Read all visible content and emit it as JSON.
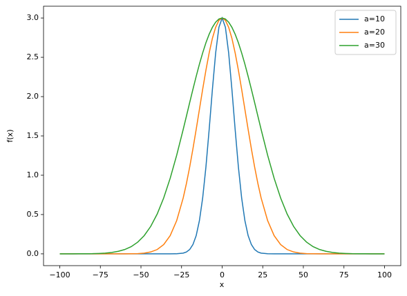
{
  "chart_data": {
    "type": "line",
    "x_label": "x",
    "y_label": "f(x)",
    "x": [
      -100,
      -96,
      -92,
      -88,
      -84,
      -80,
      -76,
      -72,
      -68,
      -64,
      -60,
      -56,
      -52,
      -48,
      -44,
      -40,
      -36,
      -32,
      -28,
      -24,
      -22,
      -20,
      -18,
      -16,
      -14,
      -12,
      -10,
      -8,
      -6,
      -4,
      -2,
      0,
      2,
      4,
      6,
      8,
      10,
      12,
      14,
      16,
      18,
      20,
      22,
      24,
      28,
      32,
      36,
      40,
      44,
      48,
      52,
      56,
      60,
      64,
      68,
      72,
      76,
      80,
      84,
      88,
      92,
      96,
      100
    ],
    "series": [
      {
        "name": "a=10",
        "color": "#1f77b4",
        "values": [
          0,
          0,
          0,
          0,
          0,
          0,
          0,
          0,
          0,
          0,
          0,
          0,
          0,
          0,
          0,
          0,
          0,
          0,
          0.001,
          0.009,
          0.024,
          0.055,
          0.118,
          0.232,
          0.423,
          0.711,
          1.104,
          1.582,
          2.093,
          2.556,
          2.882,
          3,
          2.882,
          2.556,
          2.093,
          1.582,
          1.104,
          0.711,
          0.423,
          0.232,
          0.118,
          0.055,
          0.024,
          0.009,
          0.001,
          0,
          0,
          0,
          0,
          0,
          0,
          0,
          0,
          0,
          0,
          0,
          0,
          0,
          0,
          0,
          0,
          0,
          0
        ]
      },
      {
        "name": "a=20",
        "color": "#ff7f0e",
        "values": [
          0,
          0,
          0,
          0,
          0,
          0,
          0,
          0,
          0,
          0,
          0,
          0.001,
          0.003,
          0.009,
          0.024,
          0.055,
          0.118,
          0.232,
          0.423,
          0.711,
          0.895,
          1.104,
          1.335,
          1.582,
          1.838,
          2.093,
          2.336,
          2.556,
          2.742,
          2.882,
          2.97,
          3,
          2.97,
          2.882,
          2.742,
          2.556,
          2.336,
          2.093,
          1.838,
          1.582,
          1.335,
          1.104,
          0.895,
          0.711,
          0.423,
          0.232,
          0.118,
          0.055,
          0.024,
          0.009,
          0.003,
          0.001,
          0,
          0,
          0,
          0,
          0,
          0,
          0,
          0,
          0,
          0,
          0
        ]
      },
      {
        "name": "a=30",
        "color": "#2ca02c",
        "values": [
          0,
          0,
          0,
          0.001,
          0.001,
          0.002,
          0.005,
          0.009,
          0.018,
          0.032,
          0.055,
          0.092,
          0.149,
          0.232,
          0.349,
          0.507,
          0.711,
          0.962,
          1.255,
          1.582,
          1.752,
          1.924,
          2.093,
          2.257,
          2.413,
          2.556,
          2.685,
          2.794,
          2.882,
          2.947,
          2.987,
          3,
          2.987,
          2.947,
          2.882,
          2.794,
          2.685,
          2.556,
          2.413,
          2.257,
          2.093,
          1.924,
          1.752,
          1.582,
          1.255,
          0.962,
          0.711,
          0.507,
          0.349,
          0.232,
          0.149,
          0.092,
          0.055,
          0.032,
          0.018,
          0.009,
          0.005,
          0.002,
          0.001,
          0.001,
          0,
          0,
          0
        ]
      }
    ],
    "xlim": [
      -110,
      110
    ],
    "ylim": [
      -0.15,
      3.15
    ],
    "xticks": [
      {
        "value": -100,
        "label": "−100"
      },
      {
        "value": -75,
        "label": "−75"
      },
      {
        "value": -50,
        "label": "−50"
      },
      {
        "value": -25,
        "label": "−25"
      },
      0,
      25,
      50,
      75,
      100
    ],
    "yticks": [
      {
        "value": 0,
        "label": "0.0"
      },
      {
        "value": 0.5,
        "label": "0.5"
      },
      {
        "value": 1,
        "label": "1.0"
      },
      {
        "value": 1.5,
        "label": "1.5"
      },
      {
        "value": 2,
        "label": "2.0"
      },
      {
        "value": 2.5,
        "label": "2.5"
      },
      {
        "value": 3,
        "label": "3.0"
      }
    ],
    "grid": false,
    "legend": "upper right"
  }
}
